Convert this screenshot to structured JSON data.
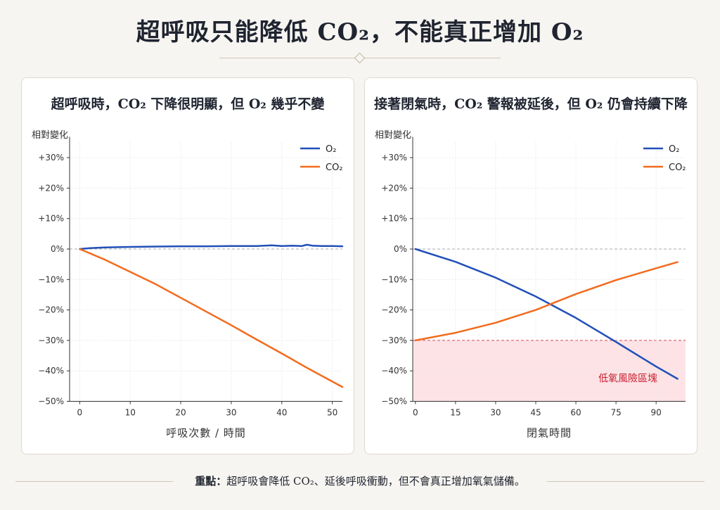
{
  "title": "超呼吸只能降低 CO₂，不能真正增加 O₂",
  "footer": {
    "key": "重點：",
    "text": "超呼吸會降低 CO₂、延後呼吸衝動，但不會真正增加氧氣儲備。"
  },
  "colors": {
    "o2": "#2150b8",
    "co2": "#f26b1d",
    "risk_fill": "#fde3e6",
    "risk_line": "#d9485a",
    "risk_text": "#c8202f"
  },
  "chart_data": [
    {
      "type": "line",
      "title": "超呼吸時，CO₂ 下降很明顯，但 O₂ 幾乎不變",
      "ylabel": "相對變化",
      "xlabel": "呼吸次數 / 時間",
      "xlim": [
        -2,
        52
      ],
      "ylim": [
        -50,
        35
      ],
      "xticks": [
        "0",
        "10",
        "20",
        "30",
        "40",
        "50"
      ],
      "xtick_values": [
        0,
        10,
        20,
        30,
        40,
        50
      ],
      "yticks": [
        "+30%",
        "+20%",
        "+10%",
        "0%",
        "−10%",
        "−20%",
        "−30%",
        "−40%",
        "−50%"
      ],
      "ytick_values": [
        30,
        20,
        10,
        0,
        -10,
        -20,
        -30,
        -40,
        -50
      ],
      "legend": {
        "placement": "top-right",
        "entries": [
          "O₂",
          "CO₂"
        ]
      },
      "series": [
        {
          "name": "O₂",
          "x": [
            0,
            2,
            5,
            10,
            15,
            20,
            25,
            30,
            35,
            38,
            40,
            42,
            44,
            45,
            46,
            48,
            50,
            52
          ],
          "values": [
            0,
            0.3,
            0.5,
            0.7,
            0.8,
            0.9,
            0.9,
            1.0,
            1.0,
            1.2,
            1.0,
            1.1,
            1.0,
            1.4,
            1.1,
            1.0,
            1.0,
            0.9
          ]
        },
        {
          "name": "CO₂",
          "x": [
            0,
            5,
            10,
            15,
            20,
            25,
            30,
            35,
            40,
            45,
            50,
            52
          ],
          "values": [
            0,
            -3.5,
            -7.5,
            -11.5,
            -16,
            -20.5,
            -25,
            -29.7,
            -34.3,
            -39,
            -43.5,
            -45.3
          ]
        }
      ]
    },
    {
      "type": "line",
      "title": "接著閉氣時，CO₂ 警報被延後，但 O₂ 仍會持續下降",
      "ylabel": "相對變化",
      "xlabel": "閉氣時間",
      "xlim": [
        -1,
        101
      ],
      "ylim": [
        -50,
        35
      ],
      "xticks": [
        "0",
        "15",
        "30",
        "45",
        "60",
        "75",
        "90"
      ],
      "xtick_values": [
        0,
        15,
        30,
        45,
        60,
        75,
        90
      ],
      "yticks": [
        "+30%",
        "+20%",
        "+10%",
        "0%",
        "−10%",
        "−20%",
        "−30%",
        "−40%",
        "−50%"
      ],
      "ytick_values": [
        30,
        20,
        10,
        0,
        -10,
        -20,
        -30,
        -40,
        -50
      ],
      "legend": {
        "placement": "top-right",
        "entries": [
          "O₂",
          "CO₂"
        ]
      },
      "risk_zone": {
        "from": -30,
        "to": -50,
        "label": "低氧風險區塊"
      },
      "series": [
        {
          "name": "O₂",
          "x": [
            0,
            15,
            30,
            45,
            60,
            75,
            90,
            98
          ],
          "values": [
            0,
            -4.2,
            -9.4,
            -15.6,
            -22.6,
            -30.5,
            -38.6,
            -42.6
          ]
        },
        {
          "name": "CO₂",
          "x": [
            0,
            15,
            30,
            45,
            60,
            75,
            90,
            98
          ],
          "values": [
            -30,
            -27.5,
            -24.2,
            -20,
            -14.8,
            -10.2,
            -6.3,
            -4.3
          ]
        }
      ]
    }
  ]
}
